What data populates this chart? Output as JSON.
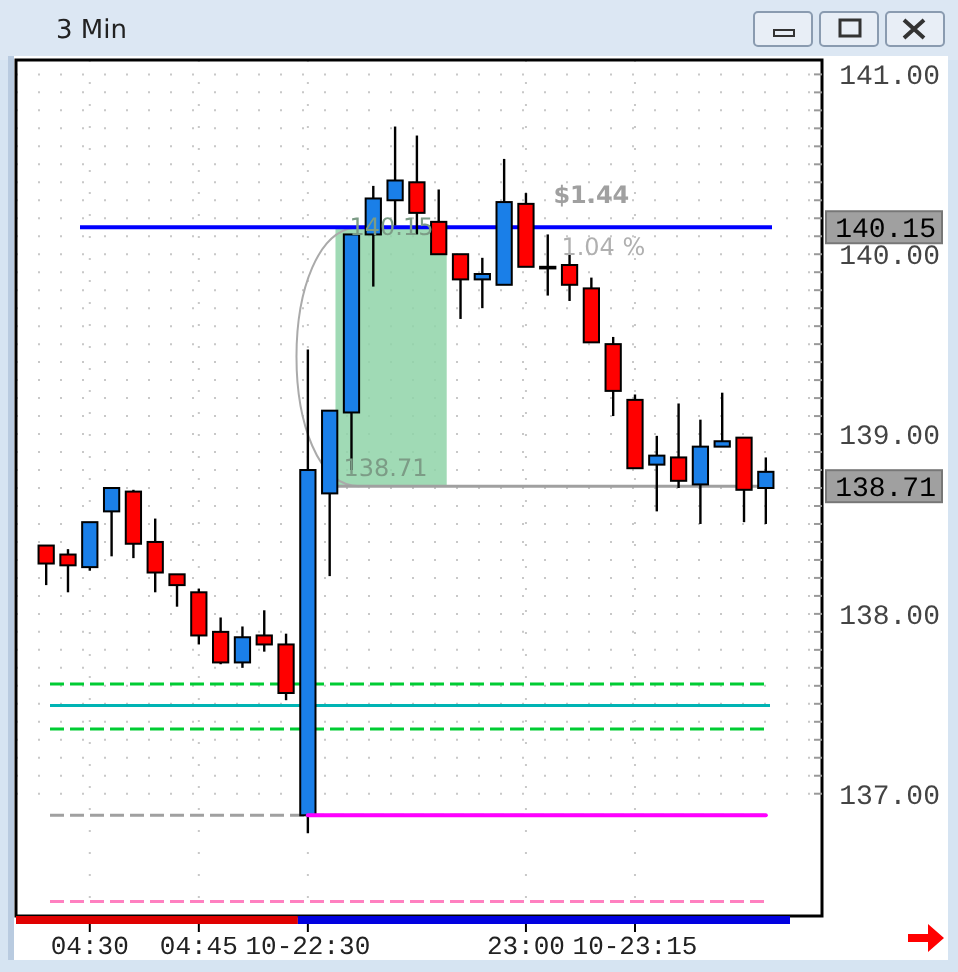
{
  "chart_data": {
    "type": "candlestick",
    "title": "3 Min",
    "categories": [
      null,
      null,
      "04:30",
      null,
      null,
      null,
      null,
      "04:45",
      null,
      null,
      null,
      null,
      "10-22:30",
      null,
      null,
      null,
      null,
      null,
      null,
      null,
      null,
      null,
      "23:00",
      null,
      null,
      null,
      null,
      "10-23:15",
      null,
      null,
      null,
      null,
      null,
      null
    ],
    "ohlc": [
      [
        138.38,
        138.38,
        138.16,
        138.28
      ],
      [
        138.33,
        138.36,
        138.12,
        138.27
      ],
      [
        138.26,
        138.51,
        138.24,
        138.51
      ],
      [
        138.57,
        138.7,
        138.32,
        138.7
      ],
      [
        138.68,
        138.69,
        138.31,
        138.39
      ],
      [
        138.4,
        138.53,
        138.12,
        138.23
      ],
      [
        138.22,
        138.22,
        138.04,
        138.16
      ],
      [
        138.12,
        138.14,
        137.83,
        137.88
      ],
      [
        137.9,
        137.98,
        137.72,
        137.73
      ],
      [
        137.73,
        137.93,
        137.7,
        137.87
      ],
      [
        137.88,
        138.02,
        137.79,
        137.83
      ],
      [
        137.83,
        137.89,
        137.52,
        137.56
      ],
      [
        136.88,
        139.47,
        136.78,
        138.8
      ],
      [
        138.67,
        139.13,
        138.21,
        139.13
      ],
      [
        139.12,
        140.11,
        138.8,
        140.11
      ],
      [
        140.11,
        140.38,
        139.82,
        140.31
      ],
      [
        140.3,
        140.71,
        140.16,
        140.41
      ],
      [
        140.4,
        140.66,
        140.11,
        140.23
      ],
      [
        140.18,
        140.36,
        140.0,
        140.0
      ],
      [
        140.0,
        140.0,
        139.64,
        139.86
      ],
      [
        139.86,
        139.98,
        139.7,
        139.89
      ],
      [
        139.83,
        140.53,
        139.83,
        140.29
      ],
      [
        140.28,
        140.34,
        139.93,
        139.93
      ],
      [
        139.93,
        140.11,
        139.77,
        139.93
      ],
      [
        139.94,
        140.0,
        139.74,
        139.83
      ],
      [
        139.81,
        139.87,
        139.51,
        139.51
      ],
      [
        139.5,
        139.54,
        139.1,
        139.24
      ],
      [
        139.19,
        139.22,
        138.81,
        138.81
      ],
      [
        138.83,
        138.99,
        138.57,
        138.88
      ],
      [
        138.87,
        139.17,
        138.7,
        138.74
      ],
      [
        138.72,
        139.08,
        138.5,
        138.93
      ],
      [
        138.93,
        139.23,
        138.93,
        138.96
      ],
      [
        138.98,
        138.98,
        138.51,
        138.69
      ],
      [
        138.7,
        138.87,
        138.5,
        138.79
      ]
    ],
    "colors": [
      "#ff0000",
      "#ff0000",
      "#1a7fe8",
      "#1a7fe8",
      "#ff0000",
      "#ff0000",
      "#ff0000",
      "#ff0000",
      "#ff0000",
      "#1a7fe8",
      "#ff0000",
      "#ff0000",
      "#1a7fe8",
      "#1a7fe8",
      "#1a7fe8",
      "#1a7fe8",
      "#1a7fe8",
      "#ff0000",
      "#ff0000",
      "#ff0000",
      "#1a7fe8",
      "#1a7fe8",
      "#ff0000",
      "#000000",
      "#ff0000",
      "#ff0000",
      "#ff0000",
      "#ff0000",
      "#1a7fe8",
      "#ff0000",
      "#1a7fe8",
      "#1a7fe8",
      "#ff0000",
      "#1a7fe8"
    ],
    "series": [
      {
        "type": "line",
        "color": "#ff00ff",
        "values": [
          null,
          null,
          null,
          null,
          null,
          null,
          null,
          null,
          null,
          null,
          null,
          null,
          136.88,
          136.88,
          136.88,
          136.88,
          136.88,
          136.88,
          136.88,
          136.88,
          136.88,
          136.88,
          136.88,
          136.88,
          136.88,
          136.88,
          136.88,
          136.88,
          136.88,
          136.88,
          136.88,
          136.88,
          136.88,
          136.88
        ]
      }
    ],
    "ylim": [
      136.32,
      141.08
    ],
    "yticks": [
      {
        "value": 137,
        "label": "137.00"
      },
      {
        "value": 137.1,
        "label": null
      },
      {
        "value": 137.2,
        "label": null
      },
      {
        "value": 137.3,
        "label": null
      },
      {
        "value": 137.4,
        "label": null
      },
      {
        "value": 137.5,
        "label": null
      },
      {
        "value": 137.6,
        "label": null
      },
      {
        "value": 137.7,
        "label": null
      },
      {
        "value": 137.8,
        "label": null
      },
      {
        "value": 137.9,
        "label": null
      },
      {
        "value": 138,
        "label": "138.00"
      },
      {
        "value": 138.1,
        "label": null
      },
      {
        "value": 138.2,
        "label": null
      },
      {
        "value": 138.3,
        "label": null
      },
      {
        "value": 138.4,
        "label": null
      },
      {
        "value": 138.5,
        "label": null
      },
      {
        "value": 138.6,
        "label": null
      },
      {
        "value": 138.7,
        "label": null
      },
      {
        "value": 138.8,
        "label": null
      },
      {
        "value": 138.9,
        "label": null
      },
      {
        "value": 139,
        "label": "139.00"
      },
      {
        "value": 139.1,
        "label": null
      },
      {
        "value": 139.2,
        "label": null
      },
      {
        "value": 139.3,
        "label": null
      },
      {
        "value": 139.4,
        "label": null
      },
      {
        "value": 139.5,
        "label": null
      },
      {
        "value": 139.6,
        "label": null
      },
      {
        "value": 139.7,
        "label": null
      },
      {
        "value": 139.8,
        "label": null
      },
      {
        "value": 139.9,
        "label": null
      },
      {
        "value": 140,
        "label": "140.00"
      },
      {
        "value": 140.1,
        "label": null
      },
      {
        "value": 140.2,
        "label": null
      },
      {
        "value": 140.3,
        "label": null
      },
      {
        "value": 140.4,
        "label": null
      },
      {
        "value": 140.5,
        "label": null
      },
      {
        "value": 140.6,
        "label": null
      },
      {
        "value": 140.7,
        "label": null
      },
      {
        "value": 140.8,
        "label": null
      },
      {
        "value": 140.9,
        "label": null
      },
      {
        "value": 141,
        "label": "141.00"
      }
    ],
    "grid": true,
    "ref_lines": [
      {
        "axis": "y",
        "value": 140.15,
        "label": "140.15",
        "color": "#0000ff"
      },
      {
        "axis": "y",
        "value": 138.71,
        "label": "138.71",
        "color": "#a0a0a0"
      },
      {
        "axis": "y",
        "value": 137.61,
        "color": "#00cc33",
        "line_style": "dashed"
      },
      {
        "axis": "y",
        "value": 137.49,
        "color": "#00b4b4"
      },
      {
        "axis": "y",
        "value": 137.36,
        "color": "#00cc33",
        "line_style": "dashed"
      },
      {
        "axis": "y",
        "value": 136.88,
        "color": "#a0a0a0",
        "line_style": "dashed"
      },
      {
        "axis": "y",
        "value": 136.4,
        "color": "#ff80c0",
        "line_style": "dashed"
      }
    ],
    "bands": [
      {
        "axis": "y",
        "from": 138.71,
        "to": 140.15,
        "color": "#8fd4a8"
      }
    ],
    "annotations": [
      {
        "text": "140.15",
        "y": 140.15
      },
      {
        "text": "138.71",
        "y": 138.71
      },
      "$1.44",
      "1.04 %"
    ]
  }
}
